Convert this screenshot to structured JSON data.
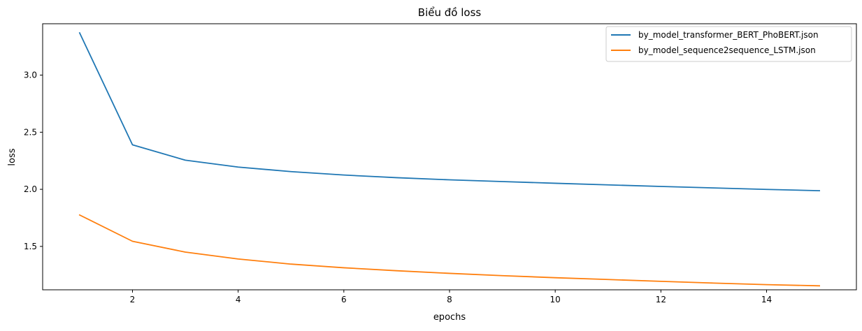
{
  "chart_data": {
    "type": "line",
    "title": "Biểu đồ loss",
    "xlabel": "epochs",
    "ylabel": "loss",
    "x": [
      1,
      2,
      3,
      4,
      5,
      6,
      7,
      8,
      9,
      10,
      11,
      12,
      13,
      14,
      15
    ],
    "xlim": [
      0.3,
      15.7
    ],
    "ylim": [
      1.12,
      3.45
    ],
    "xticks": [
      2,
      4,
      6,
      8,
      10,
      12,
      14
    ],
    "yticks": [
      1.5,
      2.0,
      2.5,
      3.0
    ],
    "xtick_labels": [
      "2",
      "4",
      "6",
      "8",
      "10",
      "12",
      "14"
    ],
    "ytick_labels": [
      "1.5",
      "2.0",
      "2.5",
      "3.0"
    ],
    "grid": false,
    "legend_position": "top-right",
    "series": [
      {
        "name": "by_model_transformer_BERT_PhoBERT.json",
        "color": "#1f77b4",
        "values": [
          3.37,
          2.39,
          2.255,
          2.195,
          2.155,
          2.125,
          2.102,
          2.083,
          2.068,
          2.053,
          2.039,
          2.025,
          2.012,
          1.999,
          1.988
        ]
      },
      {
        "name": "by_model_sequence2sequence_LSTM.json",
        "color": "#ff7f0e",
        "values": [
          1.775,
          1.545,
          1.45,
          1.39,
          1.345,
          1.313,
          1.287,
          1.264,
          1.244,
          1.226,
          1.21,
          1.194,
          1.179,
          1.165,
          1.155
        ]
      }
    ]
  }
}
